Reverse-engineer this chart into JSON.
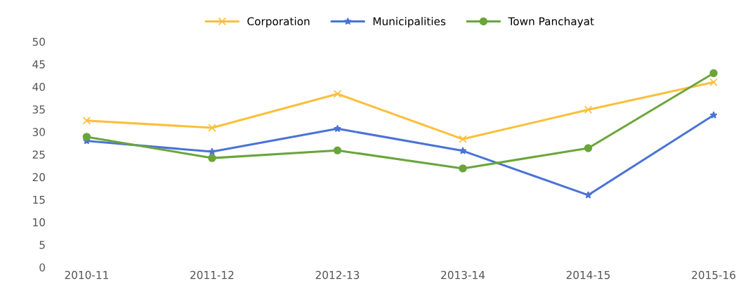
{
  "chart_data": {
    "type": "line",
    "categories": [
      "2010-11",
      "2011-12",
      "2012-13",
      "2013-14",
      "2014-15",
      "2015-16"
    ],
    "series": [
      {
        "name": "Corporation",
        "color": "#fbbf3b",
        "marker": "cross",
        "values": [
          32.5,
          30.9,
          38.4,
          28.4,
          34.9,
          41.0
        ]
      },
      {
        "name": "Municipalities",
        "color": "#4a73d6",
        "marker": "star",
        "values": [
          28.0,
          25.6,
          30.7,
          25.8,
          16.0,
          33.7
        ]
      },
      {
        "name": "Town Panchayat",
        "color": "#6aa53a",
        "marker": "circle",
        "values": [
          28.9,
          24.2,
          25.9,
          21.9,
          26.4,
          43.0
        ]
      }
    ],
    "ylim": [
      0,
      50
    ],
    "yticks": [
      0,
      5,
      10,
      15,
      20,
      25,
      30,
      35,
      40,
      45,
      50
    ],
    "grid": false,
    "legend": "top",
    "line_style": "solid"
  }
}
